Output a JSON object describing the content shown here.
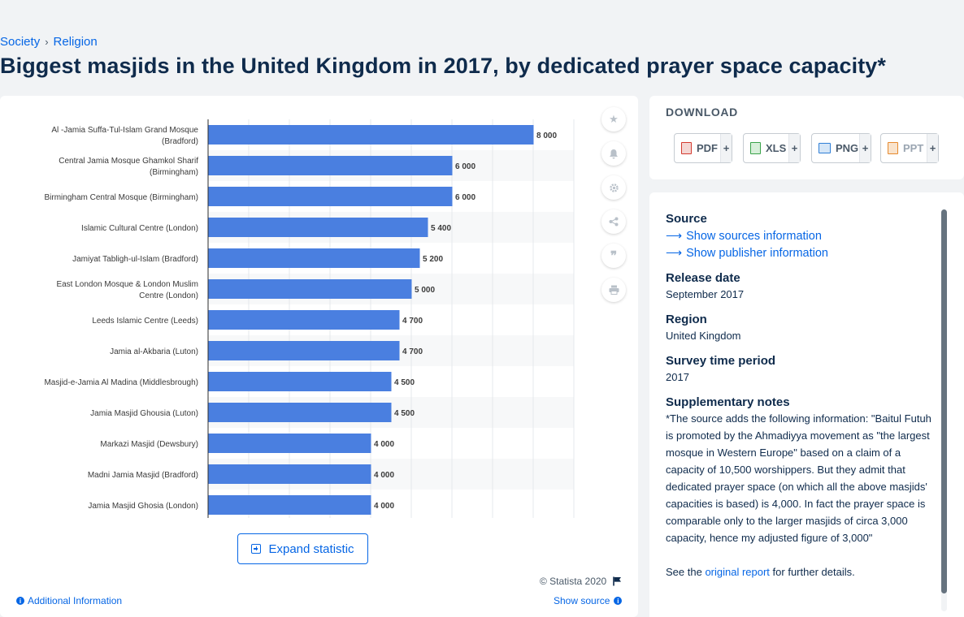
{
  "breadcrumb": {
    "items": [
      "Society",
      "Religion"
    ]
  },
  "page_title": "Biggest masjids in the United Kingdom in 2017, by dedicated prayer space capacity*",
  "chart_tools": [
    "star-icon",
    "bell-icon",
    "gear-icon",
    "share-icon",
    "quote-icon",
    "print-icon"
  ],
  "chart_data": {
    "type": "bar",
    "orientation": "horizontal",
    "categories": [
      "Al -Jamia Suffa-Tul-Islam Grand Mosque (Bradford)",
      "Central Jamia Mosque Ghamkol Sharif (Birmingham)",
      "Birmingham Central Mosque (Birmingham)",
      "Islamic Cultural Centre (London)",
      "Jamiyat Tabligh-ul-Islam (Bradford)",
      "East London Mosque & London Muslim Centre (London)",
      "Leeds Islamic Centre (Leeds)",
      "Jamia al-Akbaria (Luton)",
      "Masjid-e-Jamia Al Madina (Middlesbrough)",
      "Jamia Masjid Ghousia (Luton)",
      "Markazi Masjid (Dewsbury)",
      "Madni Jamia Masjid (Bradford)",
      "Jamia Masjid Ghosia (London)"
    ],
    "category_lines": [
      [
        "Al -Jamia Suffa-Tul-Islam Grand Mosque",
        "(Bradford)"
      ],
      [
        "Central Jamia Mosque Ghamkol Sharif",
        "(Birmingham)"
      ],
      [
        "Birmingham Central Mosque (Birmingham)"
      ],
      [
        "Islamic Cultural Centre (London)"
      ],
      [
        "Jamiyat Tabligh-ul-Islam (Bradford)"
      ],
      [
        "East London Mosque & London Muslim",
        "Centre (London)"
      ],
      [
        "Leeds Islamic Centre (Leeds)"
      ],
      [
        "Jamia al-Akbaria (Luton)"
      ],
      [
        "Masjid-e-Jamia Al Madina (Middlesbrough)"
      ],
      [
        "Jamia Masjid Ghousia (Luton)"
      ],
      [
        "Markazi Masjid (Dewsbury)"
      ],
      [
        "Madni Jamia Masjid (Bradford)"
      ],
      [
        "Jamia Masjid Ghosia (London)"
      ]
    ],
    "values": [
      8000,
      6000,
      6000,
      5400,
      5200,
      5000,
      4700,
      4700,
      4500,
      4500,
      4000,
      4000,
      4000
    ],
    "value_labels": [
      "8 000",
      "6 000",
      "6 000",
      "5 400",
      "5 200",
      "5 000",
      "4 700",
      "4 700",
      "4 500",
      "4 500",
      "4 000",
      "4 000",
      "4 000"
    ],
    "xlim": [
      0,
      9000
    ],
    "grid": true,
    "bar_color": "#4a7fe0"
  },
  "expand_label": "Expand statistic",
  "copyright": "© Statista 2020",
  "additional_info": "Additional Information",
  "show_source": "Show source",
  "download": {
    "heading": "DOWNLOAD",
    "buttons": [
      {
        "label": "PDF",
        "icon": "pdf-file-icon",
        "color": "#d33a2f"
      },
      {
        "label": "XLS",
        "icon": "xls-file-icon",
        "color": "#3aa34a"
      },
      {
        "label": "PNG",
        "icon": "png-file-icon",
        "color": "#2f7fd6"
      },
      {
        "label": "PPT",
        "icon": "ppt-file-icon",
        "color": "#e68a2e"
      }
    ],
    "plus": "+"
  },
  "info": {
    "source_label": "Source",
    "show_sources": "Show sources information",
    "show_publisher": "Show publisher information",
    "release_label": "Release date",
    "release_value": "September 2017",
    "region_label": "Region",
    "region_value": "United Kingdom",
    "survey_label": "Survey time period",
    "survey_value": "2017",
    "supp_label": "Supplementary notes",
    "supp_text": "*The source adds the following information: \"Baitul Futuh is promoted by the Ahmadiyya movement as \"the largest mosque in Western Europe\" based on a claim of a capacity of 10,500 worshippers. But they admit that dedicated prayer space (on which all the above masjids' capacities is based) is 4,000. In fact the prayer space is comparable only to the larger masjids of circa 3,000 capacity, hence my adjusted figure of 3,000\"",
    "see_pre": "See the ",
    "see_link": "original report",
    "see_post": " for further details."
  }
}
